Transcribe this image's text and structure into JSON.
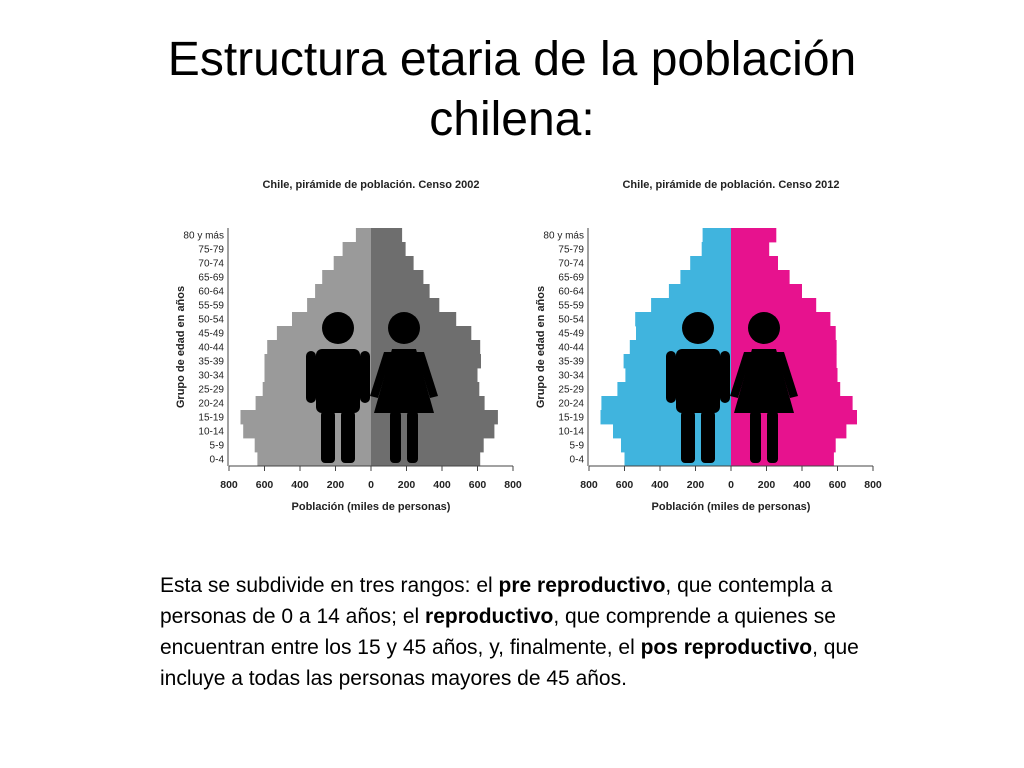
{
  "slide": {
    "title_line1": "Estructura etaria de la población",
    "title_line2": "chilena:",
    "body_parts": [
      {
        "text": "Esta se subdivide en tres rangos: el ",
        "bold": false
      },
      {
        "text": "pre reproductivo",
        "bold": true
      },
      {
        "text": ", que contempla a personas de 0 a 14 años; el ",
        "bold": false
      },
      {
        "text": "reproductivo",
        "bold": true
      },
      {
        "text": ", que comprende a quienes se encuentran entre los 15 y 45 años, y, finalmente, el ",
        "bold": false
      },
      {
        "text": "pos reproductivo",
        "bold": true
      },
      {
        "text": ", que incluye a todas las personas mayores de 45 años.",
        "bold": false
      }
    ]
  },
  "chart_data": [
    {
      "type": "bar",
      "orientation": "horizontal-pyramid",
      "title": "Chile, pirámide de población. Censo 2002",
      "xlabel": "Población (miles de personas)",
      "ylabel": "Grupo de edad en años",
      "categories": [
        "0-4",
        "5-9",
        "10-14",
        "15-19",
        "20-24",
        "25-29",
        "30-34",
        "35-39",
        "40-44",
        "45-49",
        "50-54",
        "55-59",
        "60-64",
        "65-69",
        "70-74",
        "75-79",
        "80 y más"
      ],
      "xticks": [
        "800",
        "600",
        "400",
        "200",
        "0",
        "200",
        "400",
        "600",
        "800"
      ],
      "xlim": [
        -800,
        800
      ],
      "grid": false,
      "colors": {
        "left": "#9a9a9a",
        "right": "#6e6e6e",
        "figure": "#000000"
      },
      "series": [
        {
          "side": "left",
          "values": [
            640,
            655,
            720,
            735,
            650,
            610,
            600,
            600,
            585,
            530,
            445,
            360,
            315,
            275,
            210,
            160,
            85
          ]
        },
        {
          "side": "right",
          "values": [
            615,
            635,
            695,
            715,
            640,
            610,
            600,
            620,
            615,
            565,
            480,
            385,
            330,
            295,
            240,
            195,
            175
          ]
        }
      ]
    },
    {
      "type": "bar",
      "orientation": "horizontal-pyramid",
      "title": "Chile, pirámide de población. Censo 2012",
      "xlabel": "Población (miles de personas)",
      "ylabel": "Grupo de edad en años",
      "categories": [
        "0-4",
        "5-9",
        "10-14",
        "15-19",
        "20-24",
        "25-29",
        "30-34",
        "35-39",
        "40-44",
        "45-49",
        "50-54",
        "55-59",
        "60-64",
        "65-69",
        "70-74",
        "75-79",
        "80 y más"
      ],
      "xticks": [
        "800",
        "600",
        "400",
        "200",
        "0",
        "200",
        "400",
        "600",
        "800"
      ],
      "xlim": [
        -800,
        800
      ],
      "grid": false,
      "colors": {
        "left": "#40b4de",
        "right": "#e7128e",
        "figure": "#000000"
      },
      "series": [
        {
          "side": "left",
          "values": [
            600,
            620,
            665,
            735,
            730,
            640,
            595,
            605,
            570,
            535,
            540,
            450,
            350,
            285,
            230,
            165,
            160
          ]
        },
        {
          "side": "right",
          "values": [
            580,
            590,
            650,
            710,
            685,
            615,
            600,
            595,
            595,
            590,
            560,
            480,
            400,
            330,
            265,
            215,
            255
          ]
        }
      ]
    }
  ]
}
